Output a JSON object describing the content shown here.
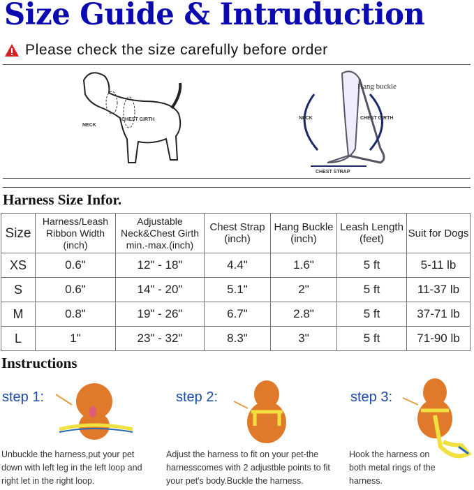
{
  "title": "Size Guide & Intruduction",
  "warning": "Please check the size carefully before order",
  "diagram": {
    "neck": "NECK",
    "chest_girth": "CHEST GIRTH",
    "hang_buckle": "Hang buckle",
    "chest_strap": "CHEST STRAP"
  },
  "table_title": "Harness Size Infor.",
  "table": {
    "headers": [
      "Size",
      "Harness/Leash Ribbon Width (inch)",
      "Adjustable Neck&Chest Girth min.-max.(inch)",
      "Chest Strap (inch)",
      "Hang Buckle (inch)",
      "Leash Length (feet)",
      "Suit for Dogs"
    ],
    "rows": [
      [
        "XS",
        "0.6\"",
        "12\" - 18\"",
        "4.4\"",
        "1.6\"",
        "5 ft",
        "5-11 lb"
      ],
      [
        "S",
        "0.6\"",
        "14\" - 20\"",
        "5.1\"",
        "2\"",
        "5 ft",
        "11-37 lb"
      ],
      [
        "M",
        "0.8\"",
        "19\" - 26\"",
        "6.7\"",
        "2.8\"",
        "5 ft",
        "37-71 lb"
      ],
      [
        "L",
        "1\"",
        "23\" - 32\"",
        "8.3\"",
        "3\"",
        "5 ft",
        "71-90 lb"
      ]
    ]
  },
  "instructions_title": "Instructions",
  "steps": [
    {
      "label": "step 1:",
      "text": "Unbuckle the harness,put your pet down with left leg in the left loop and right let in the right loop."
    },
    {
      "label": "step 2:",
      "text": "Adjust the harness to fit on your pet-the harnesscomes with 2 adjustble points to fit your pet's body.Buckle the harness."
    },
    {
      "label": "step 3:",
      "text": "Hook the harness on both metal rings of the harness."
    }
  ],
  "colors": {
    "title": "#0a0ab0",
    "step": "#1a4aa8",
    "dog": "#e07a2a",
    "warning": "#d62020"
  }
}
